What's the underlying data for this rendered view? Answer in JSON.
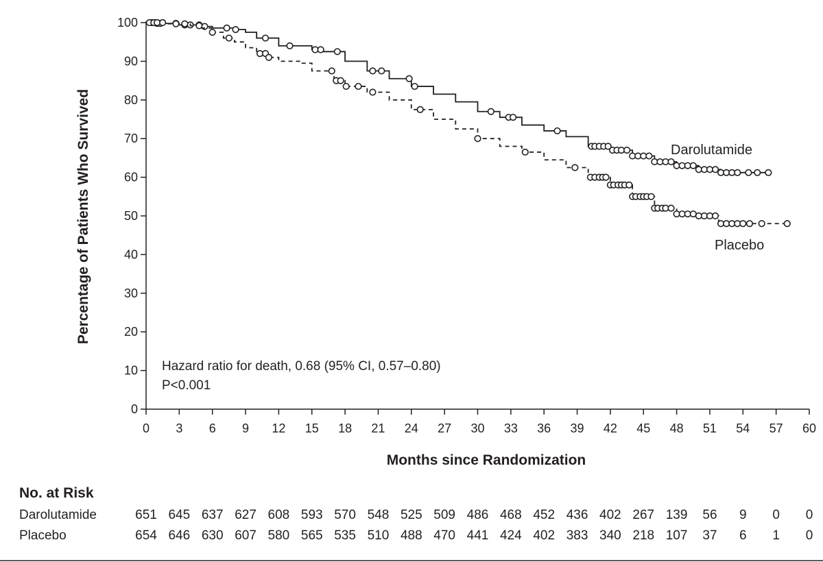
{
  "chart_data": {
    "type": "line",
    "subtype": "kaplan-meier",
    "xlabel": "Months since Randomization",
    "ylabel": "Percentage of Patients Who Survived",
    "xlim": [
      0,
      60
    ],
    "ylim": [
      0,
      100
    ],
    "x_ticks": [
      0,
      3,
      6,
      9,
      12,
      15,
      18,
      21,
      24,
      27,
      30,
      33,
      36,
      39,
      42,
      45,
      48,
      51,
      54,
      57,
      60
    ],
    "y_ticks": [
      0,
      10,
      20,
      30,
      40,
      50,
      60,
      70,
      80,
      90,
      100
    ],
    "grid": false,
    "annotation_lines": [
      "Hazard ratio for death, 0.68 (95% CI, 0.57–0.80)",
      "P<0.001"
    ],
    "series": [
      {
        "name": "Darolutamide",
        "line_style": "solid",
        "x": [
          0,
          1,
          3,
          5,
          6,
          8,
          9,
          10,
          12,
          15,
          16,
          18,
          20,
          22,
          24,
          26,
          28,
          30,
          32,
          34,
          36,
          38,
          40,
          42,
          44,
          46,
          48,
          50,
          52,
          54,
          56.5
        ],
        "y": [
          100,
          99.8,
          99.4,
          99.0,
          98.6,
          98.2,
          97.5,
          96,
          94,
          93,
          92.5,
          90,
          87.5,
          85.5,
          83.5,
          81.5,
          79.5,
          77,
          75.5,
          73.5,
          72,
          70.5,
          68,
          67,
          65.5,
          64,
          63,
          62,
          61.2,
          61.2,
          61.2
        ],
        "censor_x": [
          0.5,
          0.8,
          1,
          1.3,
          2.7,
          3.5,
          4,
          4.8,
          5.3,
          7.3,
          8.1,
          10.8,
          13,
          15.3,
          15.8,
          17.3,
          20.5,
          21.3,
          23.8,
          24.3,
          31.2,
          32.8,
          33.2,
          37.2,
          40.3,
          40.6,
          41,
          41.4,
          41.8,
          42.2,
          42.6,
          43,
          43.5,
          44,
          44.5,
          45,
          45.5,
          46,
          46.5,
          47,
          47.5,
          48,
          48.5,
          49,
          49.5,
          50,
          50.5,
          51,
          51.5,
          52,
          52.5,
          53,
          53.5,
          54.5,
          55.3,
          56.3
        ]
      },
      {
        "name": "Placebo",
        "line_style": "dashed",
        "x": [
          0,
          2,
          4,
          5,
          6,
          7,
          8,
          9,
          10,
          11,
          12,
          14,
          15,
          17,
          18,
          20,
          22,
          24,
          26,
          28,
          30,
          32,
          34,
          36,
          38,
          40,
          42,
          44,
          46,
          48,
          50,
          51.8,
          54,
          58
        ],
        "y": [
          100,
          99.7,
          99.2,
          98.6,
          97.5,
          96,
          95,
          93.5,
          92,
          91,
          90,
          89.5,
          87.5,
          85,
          83.5,
          82,
          80,
          77.5,
          75,
          72.5,
          70,
          68,
          66.5,
          64.5,
          62.5,
          60,
          58,
          55,
          52,
          50.5,
          50,
          48,
          48,
          48
        ],
        "censor_x": [
          0.3,
          0.7,
          1,
          1.5,
          2.7,
          3.5,
          4.8,
          6,
          7.5,
          10.3,
          10.8,
          11.1,
          16.8,
          17.2,
          17.6,
          18.1,
          19.2,
          20.5,
          24.8,
          30,
          34.3,
          38.8,
          40.2,
          40.6,
          41,
          41.3,
          41.6,
          42,
          42.3,
          42.7,
          43,
          43.3,
          43.7,
          44,
          44.3,
          44.7,
          45,
          45.3,
          45.7,
          46,
          46.3,
          46.7,
          47,
          47.5,
          48,
          48.5,
          49,
          49.5,
          50,
          50.5,
          51,
          51.5,
          52,
          52.5,
          53,
          53.5,
          54,
          54.6,
          55.7,
          58
        ]
      }
    ]
  },
  "risk_table": {
    "title": "No. at Risk",
    "rows": [
      {
        "label": "Darolutamide",
        "values": [
          "651",
          "645",
          "637",
          "627",
          "608",
          "593",
          "570",
          "548",
          "525",
          "509",
          "486",
          "468",
          "452",
          "436",
          "402",
          "267",
          "139",
          "56",
          "9",
          "0",
          "0"
        ]
      },
      {
        "label": "Placebo",
        "values": [
          "654",
          "646",
          "630",
          "607",
          "580",
          "565",
          "535",
          "510",
          "488",
          "470",
          "441",
          "424",
          "402",
          "383",
          "340",
          "218",
          "107",
          "37",
          "6",
          "1",
          "0"
        ]
      }
    ]
  }
}
